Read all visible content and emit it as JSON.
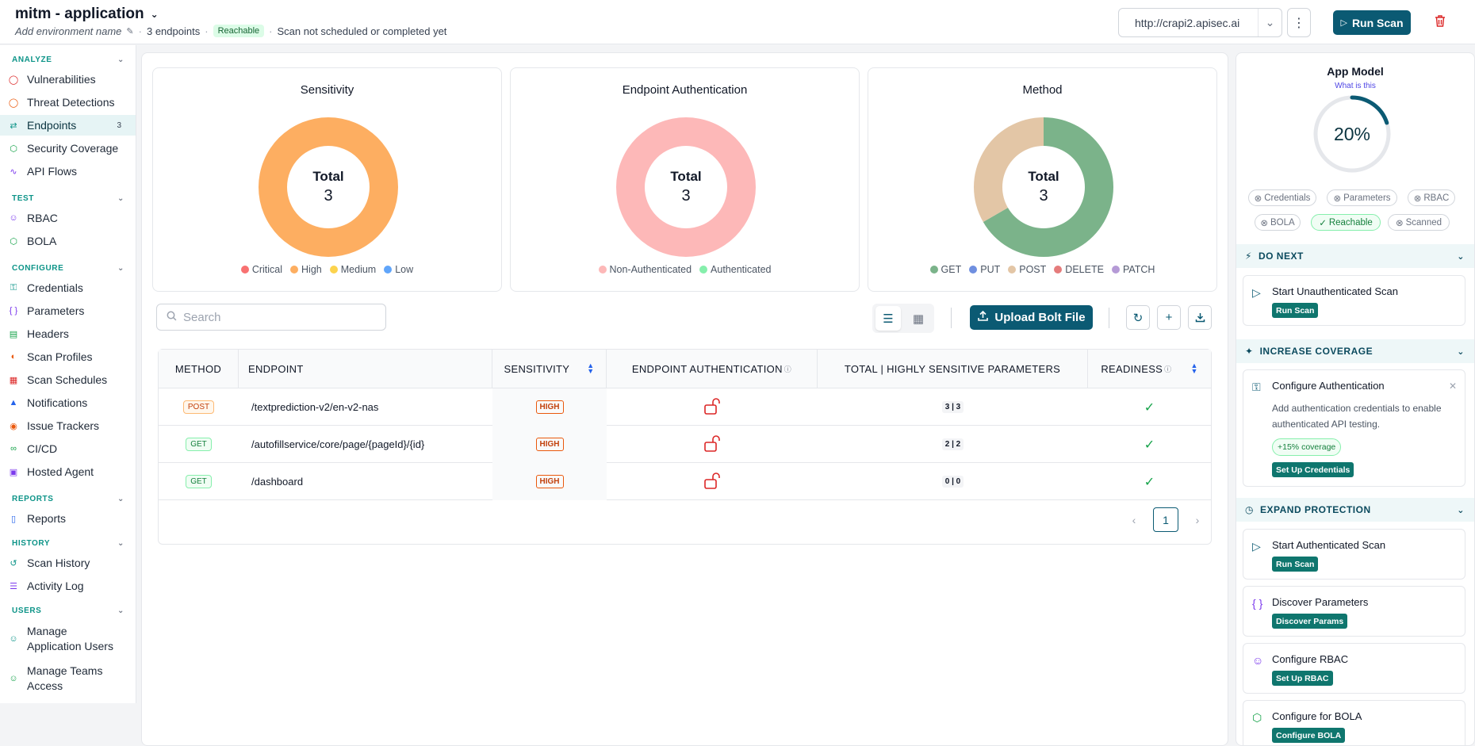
{
  "header": {
    "app_name": "mitm - application",
    "env_placeholder": "Add environment name",
    "endpoints_count": "3 endpoints",
    "status_badge": "Reachable",
    "scan_status": "Scan not scheduled or completed yet",
    "url": "http://crapi2.apisec.ai",
    "run_scan": "Run Scan"
  },
  "sidebar": {
    "analyze": "ANALYZE",
    "test": "TEST",
    "configure": "CONFIGURE",
    "reports": "REPORTS",
    "history": "HISTORY",
    "users": "USERS",
    "items": {
      "vulnerabilities": "Vulnerabilities",
      "threat": "Threat Detections",
      "endpoints": "Endpoints",
      "endpoints_count": "3",
      "security": "Security Coverage",
      "flows": "API Flows",
      "rbac": "RBAC",
      "bola": "BOLA",
      "credentials": "Credentials",
      "parameters": "Parameters",
      "headers": "Headers",
      "profiles": "Scan Profiles",
      "schedules": "Scan Schedules",
      "notifications": "Notifications",
      "issues": "Issue Trackers",
      "cicd": "CI/CD",
      "agent": "Hosted Agent",
      "reports": "Reports",
      "scan_history": "Scan History",
      "activity": "Activity Log",
      "manage_app_users_1": "Manage",
      "manage_app_users_2": "Application Users",
      "manage_teams_1": "Manage Teams",
      "manage_teams_2": "Access"
    }
  },
  "charts": {
    "total_label": "Total",
    "sensitivity": {
      "title": "Sensitivity",
      "total": "3",
      "legend": [
        "Critical",
        "High",
        "Medium",
        "Low"
      ]
    },
    "auth": {
      "title": "Endpoint Authentication",
      "total": "3",
      "legend": [
        "Non-Authenticated",
        "Authenticated"
      ]
    },
    "method": {
      "title": "Method",
      "total": "3",
      "legend": [
        "GET",
        "PUT",
        "POST",
        "DELETE",
        "PATCH"
      ]
    }
  },
  "chart_data": [
    {
      "type": "pie",
      "title": "Sensitivity",
      "categories": [
        "Critical",
        "High",
        "Medium",
        "Low"
      ],
      "values": [
        0,
        3,
        0,
        0
      ],
      "colors": [
        "#f87171",
        "#fdae61",
        "#fcd34d",
        "#60a5fa"
      ]
    },
    {
      "type": "pie",
      "title": "Endpoint Authentication",
      "categories": [
        "Non-Authenticated",
        "Authenticated"
      ],
      "values": [
        3,
        0
      ],
      "colors": [
        "#fdb8b8",
        "#86efac"
      ]
    },
    {
      "type": "pie",
      "title": "Method",
      "categories": [
        "GET",
        "PUT",
        "POST",
        "DELETE",
        "PATCH"
      ],
      "values": [
        2,
        0,
        1,
        0,
        0
      ],
      "colors": [
        "#7bb38a",
        "#6f8fe0",
        "#e3c6a6",
        "#e57c7c",
        "#b59ad6"
      ]
    }
  ],
  "toolbar": {
    "search_placeholder": "Search",
    "upload": "Upload Bolt File"
  },
  "table": {
    "headers": [
      "METHOD",
      "ENDPOINT",
      "SENSITIVITY",
      "ENDPOINT AUTHENTICATION",
      "TOTAL | HIGHLY SENSITIVE PARAMETERS",
      "READINESS"
    ],
    "rows": [
      {
        "method": "POST",
        "endpoint": "/textprediction-v2/en-v2-nas",
        "sensitivity": "HIGH",
        "params": "3 | 3"
      },
      {
        "method": "GET",
        "endpoint": "/autofillservice/core/page/{pageId}/{id}",
        "sensitivity": "HIGH",
        "params": "2 | 2"
      },
      {
        "method": "GET",
        "endpoint": "/dashboard",
        "sensitivity": "HIGH",
        "params": "0 | 0"
      }
    ],
    "page": "1"
  },
  "app_model": {
    "title": "App Model",
    "link": "What is this",
    "percent": "20%",
    "progress": 0.2,
    "chips": [
      "Credentials",
      "Parameters",
      "RBAC",
      "BOLA",
      "Reachable",
      "Scanned"
    ],
    "do_next": "DO NEXT",
    "increase": "INCREASE COVERAGE",
    "expand": "EXPAND PROTECTION",
    "tasks": {
      "unauth_title": "Start Unauthenticated Scan",
      "unauth_btn": "Run Scan",
      "auth_title": "Configure Authentication",
      "auth_desc": "Add authentication credentials to enable authenticated API testing.",
      "auth_cov": "+15% coverage",
      "auth_btn": "Set Up Credentials",
      "authscan_title": "Start Authenticated Scan",
      "authscan_btn": "Run Scan",
      "params_title": "Discover Parameters",
      "params_btn": "Discover Params",
      "rbac_title": "Configure RBAC",
      "rbac_btn": "Set Up RBAC",
      "bola_title": "Configure for BOLA",
      "bola_btn": "Configure BOLA"
    }
  }
}
